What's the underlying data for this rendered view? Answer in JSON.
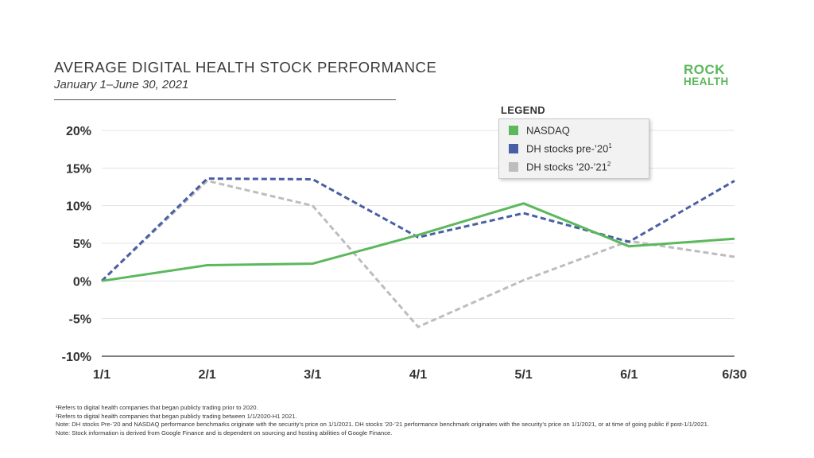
{
  "header": {
    "title": "AVERAGE DIGITAL HEALTH STOCK PERFORMANCE",
    "subtitle": "January 1–June 30, 2021"
  },
  "logo": {
    "line1": "ROCK",
    "line2": "HEALTH"
  },
  "legend": {
    "title": "LEGEND",
    "items": [
      {
        "label": "NASDAQ",
        "sup": "",
        "color": "#5cb85c"
      },
      {
        "label": "DH stocks pre-’20",
        "sup": "1",
        "color": "#4a5fa3"
      },
      {
        "label": "DH stocks ’20-’21",
        "sup": "2",
        "color": "#bdbdbd"
      }
    ]
  },
  "chart_data": {
    "type": "line",
    "title": "AVERAGE DIGITAL HEALTH STOCK PERFORMANCE",
    "subtitle": "January 1–June 30, 2021",
    "categories": [
      "1/1",
      "2/1",
      "3/1",
      "4/1",
      "5/1",
      "6/1",
      "6/30"
    ],
    "y_ticks": [
      "20%",
      "15%",
      "10%",
      "5%",
      "0%",
      "-5%",
      "-10%"
    ],
    "ylim": [
      -10,
      20
    ],
    "grid": true,
    "legend_position": "top-right",
    "series": [
      {
        "name": "NASDAQ",
        "style": "solid",
        "color": "#5cb85c",
        "values": [
          0,
          2.1,
          2.3,
          6.1,
          10.3,
          4.6,
          5.6
        ]
      },
      {
        "name": "DH stocks pre-’20",
        "style": "dashed",
        "color": "#4a5fa3",
        "values": [
          0,
          13.6,
          13.5,
          5.8,
          9.0,
          5.2,
          13.3
        ]
      },
      {
        "name": "DH stocks ’20-’21",
        "style": "dashed",
        "color": "#bdbdbd",
        "values": [
          0,
          13.3,
          10.0,
          -6.1,
          0.1,
          5.3,
          3.2
        ]
      }
    ]
  },
  "footnotes": [
    "¹Refers to digital health companies that began publicly trading prior to 2020.",
    "²Refers to digital health companies that began publicly trading between 1/1/2020-H1 2021.",
    "Note: DH stocks Pre-’20 and NASDAQ performance benchmarks originate with the security’s price on 1/1/2021. DH stocks ’20-’21 performance benchmark originates with the security’s price on 1/1/2021, or at time of going public if post-1/1/2021.",
    "Note: Stock information is derived from Google Finance and is dependent on sourcing and hosting abilities of Google Finance."
  ]
}
